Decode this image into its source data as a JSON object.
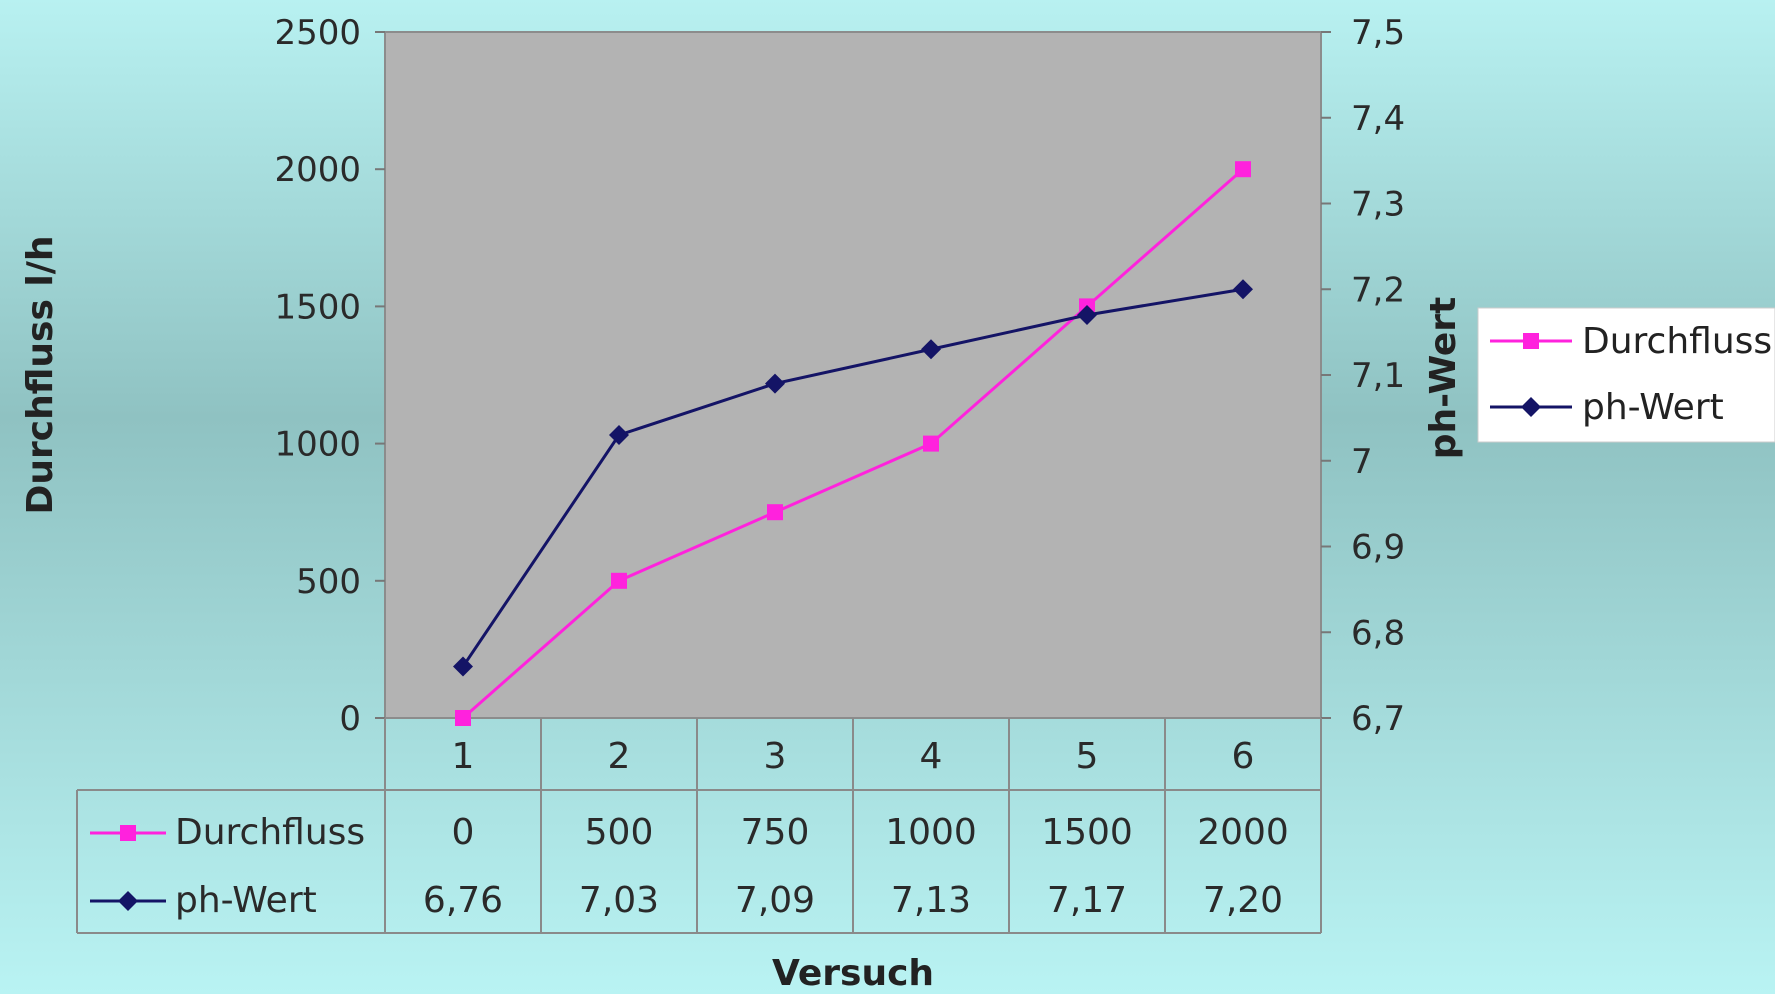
{
  "chart_data": {
    "type": "line",
    "categories": [
      "1",
      "2",
      "3",
      "4",
      "5",
      "6"
    ],
    "series": [
      {
        "name": "Durchfluss",
        "axis": "left",
        "color": "#ff22dd",
        "marker": "square",
        "values": [
          0,
          500,
          750,
          1000,
          1500,
          2000
        ],
        "table_labels": [
          "0",
          "500",
          "750",
          "1000",
          "1500",
          "2000"
        ]
      },
      {
        "name": "ph-Wert",
        "axis": "right",
        "color": "#141466",
        "marker": "diamond",
        "values": [
          6.76,
          7.03,
          7.09,
          7.13,
          7.17,
          7.2
        ],
        "table_labels": [
          "6,76",
          "7,03",
          "7,09",
          "7,13",
          "7,17",
          "7,20"
        ]
      }
    ],
    "xlabel": "Versuch",
    "ylabel": "Durchfluss l/h",
    "y2label": "ph-Wert",
    "ylim": [
      0,
      2500
    ],
    "y2lim": [
      6.7,
      7.5
    ],
    "yticks": [
      "0",
      "500",
      "1000",
      "1500",
      "2000",
      "2500"
    ],
    "y2ticks": [
      "6,7",
      "6,8",
      "6,9",
      "7",
      "7,1",
      "7,2",
      "7,3",
      "7,4",
      "7,5"
    ],
    "legend": {
      "position": "right",
      "entries": [
        "Durchfluss",
        "ph-Wert"
      ]
    },
    "data_table": true,
    "plot_background": "#b3b3b3",
    "gridlines": false
  }
}
